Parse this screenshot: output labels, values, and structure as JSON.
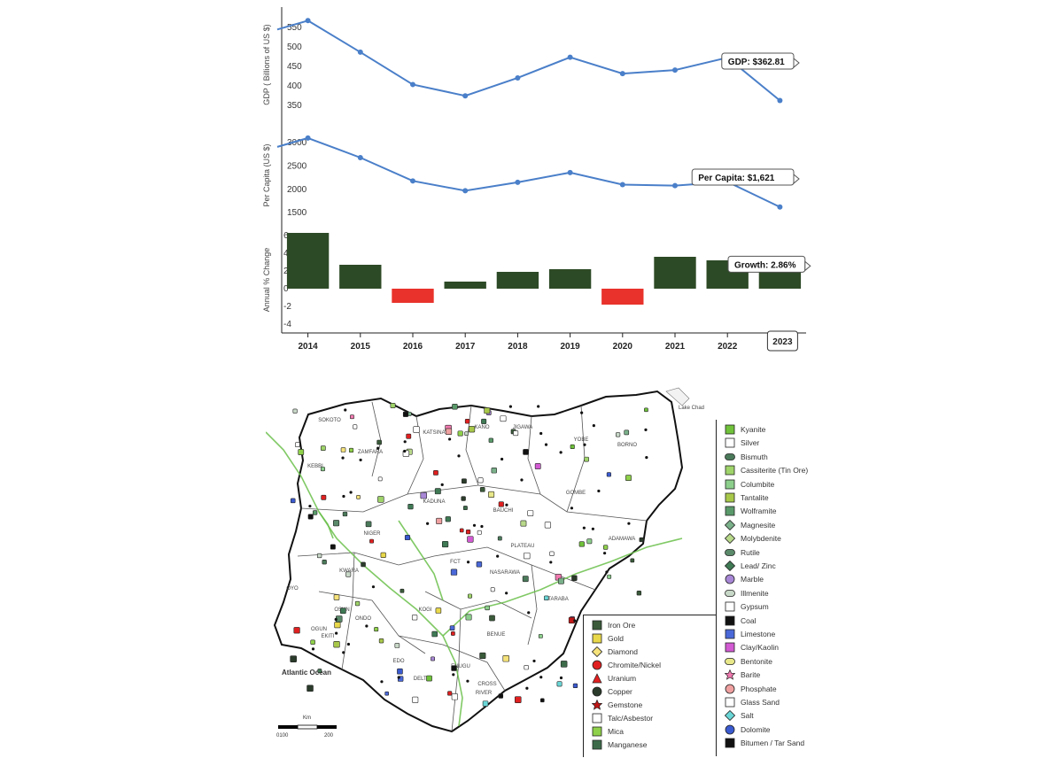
{
  "chart_data": [
    {
      "type": "line",
      "ylabel": "GDP ( Billions of US $)",
      "x": [
        "2014",
        "2015",
        "2016",
        "2017",
        "2018",
        "2019",
        "2020",
        "2021",
        "2022",
        "2023"
      ],
      "values": [
        568,
        487,
        404,
        375,
        421,
        474,
        432,
        441,
        473,
        363
      ],
      "yticks": [
        350,
        400,
        450,
        500,
        550
      ],
      "ylim": [
        330,
        580
      ],
      "tooltip": "GDP: $362.81",
      "color": "#4a7fc9"
    },
    {
      "type": "line",
      "ylabel": "Per Capita (US $)",
      "x": [
        "2014",
        "2015",
        "2016",
        "2017",
        "2018",
        "2019",
        "2020",
        "2021",
        "2022",
        "2023"
      ],
      "values": [
        3100,
        2680,
        2180,
        1970,
        2150,
        2360,
        2100,
        2080,
        2160,
        1621
      ],
      "yticks": [
        1500,
        2000,
        2500,
        3000
      ],
      "ylim": [
        1350,
        3250
      ],
      "tooltip": "Per Capita: $1,621",
      "color": "#4a7fc9"
    },
    {
      "type": "bar",
      "ylabel": "Annual % Change",
      "categories": [
        "2014",
        "2015",
        "2016",
        "2017",
        "2018",
        "2019",
        "2020",
        "2021",
        "2022",
        "2023"
      ],
      "x_tick_labels": [
        "2014",
        "2015",
        "2016",
        "2017",
        "2018",
        "2019",
        "2020",
        "2021",
        "2022",
        "20"
      ],
      "values": [
        6.3,
        2.7,
        -1.6,
        0.8,
        1.9,
        2.2,
        -1.8,
        3.6,
        3.2,
        2.86
      ],
      "yticks": [
        -4,
        -2,
        0,
        2,
        4,
        6
      ],
      "ylim": [
        -4,
        6
      ],
      "tooltip": "Growth: 2.86%",
      "hover_year": "2023",
      "positive_color": "#2d4a26",
      "negative_color": "#e8322b"
    }
  ],
  "map": {
    "ocean_label": "Atlantic Ocean",
    "lake_label": "Lake Chad",
    "scale_title": "Km",
    "scale_left": "0100",
    "scale_right": "200",
    "places": [
      "SOKOTO",
      "KATSINA",
      "KANO",
      "JIGAWA",
      "YOBE",
      "BORNO",
      "ZAMFARA",
      "KEBBI",
      "KADUNA",
      "BAUCHI",
      "GOMBE",
      "NIGER",
      "PLATEAU",
      "ADAMAWA",
      "KWARA",
      "NASARAWA",
      "TARABA",
      "OYO",
      "KOGI",
      "BENUE",
      "OGUN",
      "ONDO",
      "EDO",
      "ENUGU",
      "DELTA",
      "CROSS",
      "RIVER",
      "OSUN",
      "EKITI",
      "FCT"
    ]
  },
  "legend_left": [
    {
      "label": "Iron Ore",
      "icon": "iron-ore-icon",
      "color": "#3a5a3a"
    },
    {
      "label": "Gold",
      "icon": "gold-icon",
      "color": "#e8d84a"
    },
    {
      "label": "Diamond",
      "icon": "diamond-icon",
      "color": "#f5e27a"
    },
    {
      "label": "Chromite/Nickel",
      "icon": "chromite-nickel-icon",
      "color": "#e02020"
    },
    {
      "label": "Uranium",
      "icon": "uranium-icon",
      "color": "#e02020"
    },
    {
      "label": "Copper",
      "icon": "copper-icon",
      "color": "#2b3b2b"
    },
    {
      "label": "Gemstone",
      "icon": "gemstone-icon",
      "color": "#c01818"
    },
    {
      "label": "Talc/Asbestor",
      "icon": "talc-asbestor-icon",
      "color": "#ffffff"
    },
    {
      "label": "Mica",
      "icon": "mica-icon",
      "color": "#8fd14a"
    },
    {
      "label": "Manganese",
      "icon": "manganese-icon",
      "color": "#3d6b4a"
    }
  ],
  "legend_right": [
    {
      "label": "Kyanite",
      "icon": "kyanite-icon",
      "color": "#6fc23a"
    },
    {
      "label": "Silver",
      "icon": "silver-icon",
      "color": "#ffffff"
    },
    {
      "label": "Bismuth",
      "icon": "bismuth-icon",
      "color": "#4a7a5a"
    },
    {
      "label": "Cassiterite (Tin Ore)",
      "icon": "cassiterite-icon",
      "color": "#9fd46a"
    },
    {
      "label": "Columbite",
      "icon": "columbite-icon",
      "color": "#8ccf8c"
    },
    {
      "label": "Tantalite",
      "icon": "tantalite-icon",
      "color": "#a8c84a"
    },
    {
      "label": "Wolframite",
      "icon": "wolframite-icon",
      "color": "#5a9a6a"
    },
    {
      "label": "Magnesite",
      "icon": "magnesite-icon",
      "color": "#7ab08a"
    },
    {
      "label": "Molybdenite",
      "icon": "molybdenite-icon",
      "color": "#b8d88a"
    },
    {
      "label": "Rutile",
      "icon": "rutile-icon",
      "color": "#5a8a6a"
    },
    {
      "label": "Lead/ Zinc",
      "icon": "lead-zinc-icon",
      "color": "#3f7a55"
    },
    {
      "label": "Marble",
      "icon": "marble-icon",
      "color": "#a887d6"
    },
    {
      "label": "Illmenite",
      "icon": "illmenite-icon",
      "color": "#c8d8c8"
    },
    {
      "label": "Gypsum",
      "icon": "gypsum-icon",
      "color": "#ffffff"
    },
    {
      "label": "Coal",
      "icon": "coal-icon",
      "color": "#111111"
    },
    {
      "label": "Limestone",
      "icon": "limestone-icon",
      "color": "#4a68d8"
    },
    {
      "label": "Clay/Kaolin",
      "icon": "clay-kaolin-icon",
      "color": "#d25ad2"
    },
    {
      "label": "Bentonite",
      "icon": "bentonite-icon",
      "color": "#e8e88a"
    },
    {
      "label": "Barite",
      "icon": "barite-icon",
      "color": "#f07ab0"
    },
    {
      "label": "Phosphate",
      "icon": "phosphate-icon",
      "color": "#f0a0a0"
    },
    {
      "label": "Glass Sand",
      "icon": "glass-sand-icon",
      "color": "#ffffff"
    },
    {
      "label": "Salt",
      "icon": "salt-icon",
      "color": "#6ad6d6"
    },
    {
      "label": "Dolomite",
      "icon": "dolomite-icon",
      "color": "#3a5ad0"
    },
    {
      "label": "Bitumen / Tar Sand",
      "icon": "bitumen-icon",
      "color": "#111111"
    }
  ]
}
